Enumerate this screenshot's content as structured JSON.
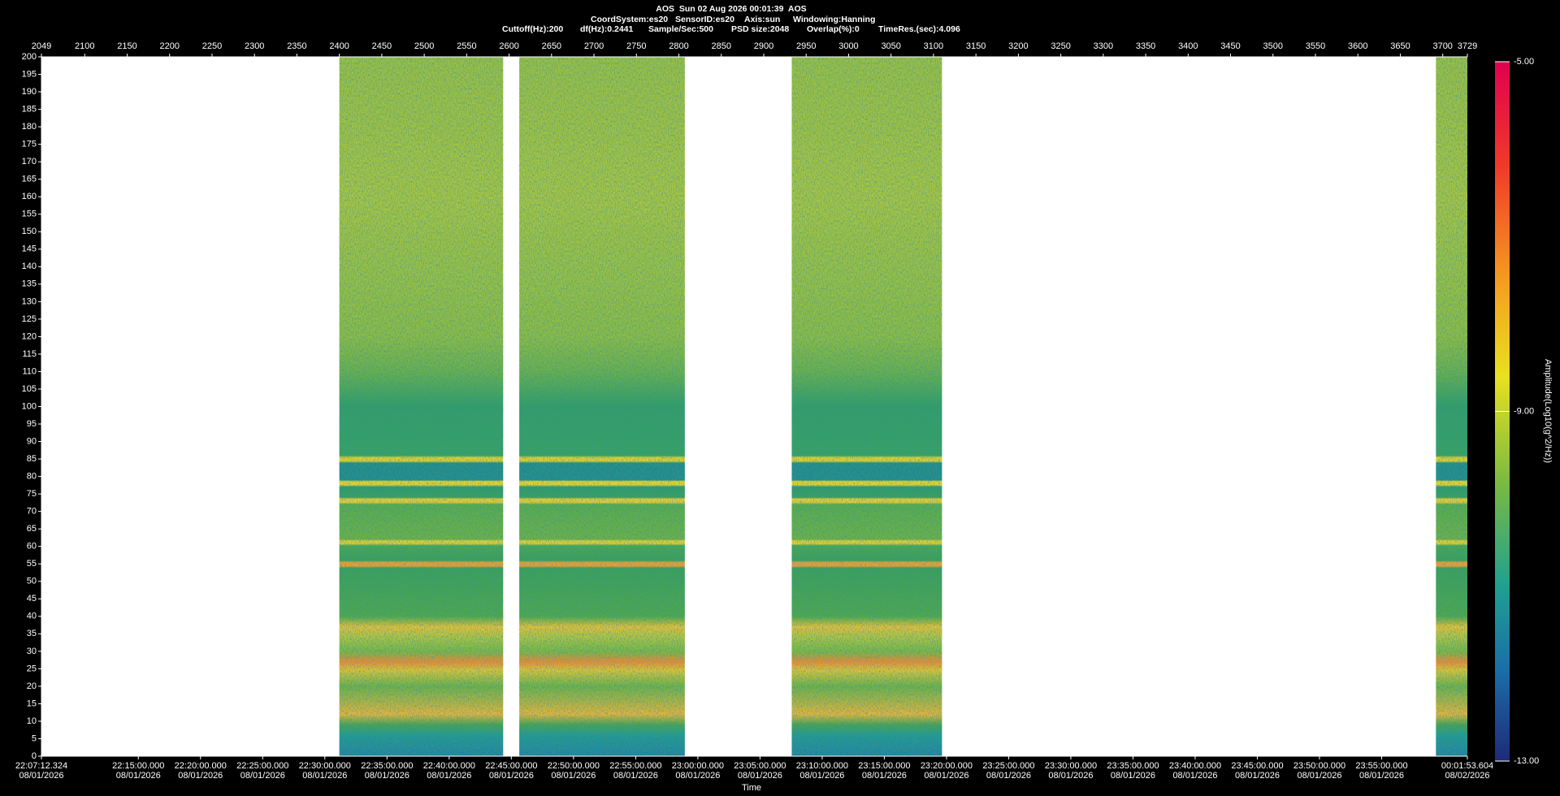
{
  "chart_data": {
    "type": "spectrogram",
    "title": "AOS  Sun 02 Aug 2026 00:01:39  AOS",
    "subtitle": [
      "CoordSystem:es20",
      "SensorID:es20",
      "Axis:sun",
      "Windowing:Hanning"
    ],
    "parameters": [
      "Cuttoff(Hz):200",
      "df(Hz):0.2441",
      "Sample/Sec:500",
      "PSD size:2048",
      "Overlap(%):0",
      "TimeRes.(sec):4.096"
    ],
    "xlabel": "Time",
    "colorbar_label": "Amplitude(Log10(g^2/Hz))",
    "xlim": [
      2049,
      3729
    ],
    "xticks": [
      2049,
      2100,
      2150,
      2200,
      2250,
      2300,
      2350,
      2400,
      2450,
      2500,
      2550,
      2600,
      2650,
      2700,
      2750,
      2800,
      2850,
      2900,
      2950,
      3000,
      3050,
      3100,
      3150,
      3200,
      3250,
      3300,
      3350,
      3400,
      3450,
      3500,
      3550,
      3600,
      3650,
      3700,
      3729
    ],
    "x2lim": [
      79632.324,
      86513.604
    ],
    "x2ticks": [
      {
        "value": 79632.324,
        "label": "22:07:12.324"
      },
      {
        "value": 80100,
        "label": "22:15:00.000"
      },
      {
        "value": 80400,
        "label": "22:20:00.000"
      },
      {
        "value": 80700,
        "label": "22:25:00.000"
      },
      {
        "value": 81000,
        "label": "22:30:00.000"
      },
      {
        "value": 81300,
        "label": "22:35:00.000"
      },
      {
        "value": 81600,
        "label": "22:40:00.000"
      },
      {
        "value": 81900,
        "label": "22:45:00.000"
      },
      {
        "value": 82200,
        "label": "22:50:00.000"
      },
      {
        "value": 82500,
        "label": "22:55:00.000"
      },
      {
        "value": 82800,
        "label": "23:00:00.000"
      },
      {
        "value": 83100,
        "label": "23:05:00.000"
      },
      {
        "value": 83400,
        "label": "23:10:00.000"
      },
      {
        "value": 83700,
        "label": "23:15:00.000"
      },
      {
        "value": 84000,
        "label": "23:20:00.000"
      },
      {
        "value": 84300,
        "label": "23:25:00.000"
      },
      {
        "value": 84600,
        "label": "23:30:00.000"
      },
      {
        "value": 84900,
        "label": "23:35:00.000"
      },
      {
        "value": 85200,
        "label": "23:40:00.000"
      },
      {
        "value": 85500,
        "label": "23:45:00.000"
      },
      {
        "value": 85800,
        "label": "23:50:00.000"
      },
      {
        "value": 86100,
        "label": "23:55:00.000"
      },
      {
        "value": 86513.604,
        "label": "00:01:53.604"
      }
    ],
    "x2tick_dates": [
      "08/01/2026",
      "08/01/2026",
      "08/01/2026",
      "08/01/2026",
      "08/01/2026",
      "08/01/2026",
      "08/01/2026",
      "08/01/2026",
      "08/01/2026",
      "08/01/2026",
      "08/01/2026",
      "08/01/2026",
      "08/01/2026",
      "08/01/2026",
      "08/01/2026",
      "08/01/2026",
      "08/01/2026",
      "08/01/2026",
      "08/01/2026",
      "08/01/2026",
      "08/01/2026",
      "08/01/2026",
      "08/02/2026"
    ],
    "ylim": [
      0,
      200
    ],
    "yticks": [
      0,
      5,
      10,
      15,
      20,
      25,
      30,
      35,
      40,
      45,
      50,
      55,
      60,
      65,
      70,
      75,
      80,
      85,
      90,
      95,
      100,
      105,
      110,
      115,
      120,
      125,
      130,
      135,
      140,
      145,
      150,
      155,
      160,
      165,
      170,
      175,
      180,
      185,
      190,
      195,
      200
    ],
    "data_segments": [
      [
        2400,
        2593
      ],
      [
        2612,
        2807
      ],
      [
        2933,
        3110
      ],
      [
        3692,
        3729
      ]
    ],
    "clim": [
      -13,
      -5
    ],
    "cticks": [
      {
        "value": -5,
        "label": "-5.00"
      },
      {
        "value": -9,
        "label": "-9.00"
      },
      {
        "value": -13,
        "label": "-13.00"
      }
    ]
  }
}
